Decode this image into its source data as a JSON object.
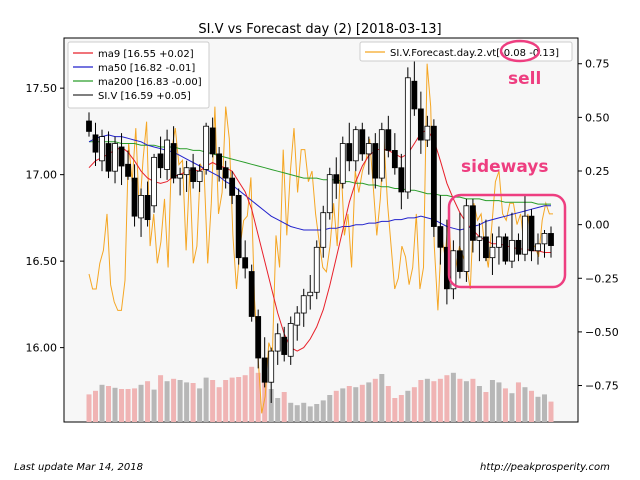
{
  "chart_data": {
    "type": "candlestick",
    "title": "SI.V vs Forecast day (2)  [2018-03-13]",
    "left_axis": {
      "ylim": [
        15.57,
        17.79
      ],
      "ticks": [
        16.0,
        16.5,
        17.0,
        17.5
      ]
    },
    "right_axis": {
      "ylim": [
        -0.92,
        0.87
      ],
      "ticks": [
        -0.75,
        -0.5,
        -0.25,
        0.0,
        0.25,
        0.5,
        0.75
      ]
    },
    "volume_range": [
      0,
      1
    ],
    "legend_left": [
      {
        "label": "ma9 [16.55 +0.02]",
        "color": "#e8202a"
      },
      {
        "label": "ma50 [16.82 -0.01]",
        "color": "#2222cc"
      },
      {
        "label": "ma200 [16.83 -0.00]",
        "color": "#2a9d2a"
      },
      {
        "label": "SI.V [16.59 +0.05]",
        "color": "#333333"
      }
    ],
    "legend_right": [
      {
        "label_prefix": "SI.V.Forecast.day.2.vt",
        "label_value": "[-0.08 -0.13]",
        "color": "#f5a623"
      }
    ],
    "annotations": [
      {
        "text": "sell",
        "color": "#ee3e80"
      },
      {
        "text": "sideways",
        "color": "#ee3e80"
      }
    ],
    "ohlc": [
      [
        17.31,
        17.36,
        17.22,
        17.25
      ],
      [
        17.23,
        17.3,
        17.05,
        17.13
      ],
      [
        17.08,
        17.26,
        17.02,
        17.22
      ],
      [
        17.18,
        17.25,
        16.98,
        17.02
      ],
      [
        17.02,
        17.22,
        16.95,
        17.18
      ],
      [
        17.16,
        17.24,
        16.94,
        17.05
      ],
      [
        17.06,
        17.14,
        16.97,
        16.99
      ],
      [
        16.98,
        17.06,
        16.7,
        16.76
      ],
      [
        16.75,
        16.92,
        16.64,
        16.88
      ],
      [
        16.88,
        16.96,
        16.7,
        16.74
      ],
      [
        16.82,
        17.12,
        16.78,
        17.1
      ],
      [
        17.12,
        17.22,
        16.98,
        17.04
      ],
      [
        17.03,
        17.26,
        16.97,
        17.2
      ],
      [
        17.18,
        17.28,
        16.95,
        16.98
      ],
      [
        16.98,
        17.04,
        16.88,
        17.0
      ],
      [
        17.0,
        17.08,
        16.9,
        17.04
      ],
      [
        17.04,
        17.12,
        16.92,
        16.96
      ],
      [
        16.96,
        17.06,
        16.9,
        17.02
      ],
      [
        17.03,
        17.3,
        17.0,
        17.28
      ],
      [
        17.27,
        17.33,
        17.1,
        17.12
      ],
      [
        17.12,
        17.16,
        16.96,
        17.03
      ],
      [
        17.04,
        17.08,
        16.92,
        16.98
      ],
      [
        16.98,
        17.02,
        16.83,
        16.88
      ],
      [
        16.88,
        16.92,
        16.48,
        16.52
      ],
      [
        16.52,
        16.62,
        16.4,
        16.46
      ],
      [
        16.44,
        16.48,
        16.15,
        16.18
      ],
      [
        16.18,
        16.22,
        15.88,
        15.94
      ],
      [
        15.94,
        16.06,
        15.77,
        15.8
      ],
      [
        15.8,
        16.0,
        15.68,
        15.98
      ],
      [
        15.98,
        16.14,
        15.9,
        16.08
      ],
      [
        16.06,
        16.12,
        15.92,
        15.96
      ],
      [
        15.95,
        16.18,
        15.9,
        16.14
      ],
      [
        16.13,
        16.24,
        16.04,
        16.2
      ],
      [
        16.2,
        16.34,
        16.12,
        16.3
      ],
      [
        16.3,
        16.42,
        16.22,
        16.32
      ],
      [
        16.32,
        16.62,
        16.28,
        16.58
      ],
      [
        16.58,
        16.82,
        16.52,
        16.78
      ],
      [
        16.78,
        17.04,
        16.74,
        17.0
      ],
      [
        17.0,
        17.1,
        16.86,
        16.95
      ],
      [
        16.95,
        17.22,
        16.92,
        17.18
      ],
      [
        17.18,
        17.3,
        17.02,
        17.08
      ],
      [
        17.08,
        17.28,
        17.02,
        17.26
      ],
      [
        17.26,
        17.3,
        17.08,
        17.12
      ],
      [
        17.12,
        17.22,
        17.0,
        17.18
      ],
      [
        17.18,
        17.24,
        16.92,
        16.98
      ],
      [
        16.98,
        17.3,
        16.96,
        17.26
      ],
      [
        17.26,
        17.34,
        17.1,
        17.14
      ],
      [
        17.14,
        17.24,
        17.0,
        17.04
      ],
      [
        17.04,
        17.12,
        16.8,
        16.9
      ],
      [
        16.9,
        17.62,
        16.86,
        17.56
      ],
      [
        17.54,
        17.66,
        17.34,
        17.38
      ],
      [
        17.38,
        17.48,
        17.12,
        17.2
      ],
      [
        17.2,
        17.34,
        17.16,
        17.28
      ],
      [
        17.28,
        17.32,
        16.64,
        16.7
      ],
      [
        16.7,
        16.88,
        16.48,
        16.58
      ],
      [
        16.58,
        16.74,
        16.25,
        16.34
      ],
      [
        16.34,
        16.62,
        16.28,
        16.56
      ],
      [
        16.56,
        16.78,
        16.4,
        16.44
      ],
      [
        16.44,
        16.86,
        16.38,
        16.82
      ],
      [
        16.82,
        16.86,
        16.55,
        16.62
      ],
      [
        16.62,
        16.72,
        16.5,
        16.64
      ],
      [
        16.64,
        16.74,
        16.5,
        16.52
      ],
      [
        16.52,
        16.66,
        16.42,
        16.58
      ],
      [
        16.58,
        16.7,
        16.48,
        16.64
      ],
      [
        16.64,
        16.66,
        16.48,
        16.5
      ],
      [
        16.5,
        16.78,
        16.46,
        16.62
      ],
      [
        16.62,
        16.66,
        16.5,
        16.54
      ],
      [
        16.54,
        16.88,
        16.5,
        16.76
      ],
      [
        16.76,
        16.8,
        16.5,
        16.56
      ],
      [
        16.56,
        16.66,
        16.48,
        16.6
      ],
      [
        16.6,
        16.68,
        16.52,
        16.66
      ],
      [
        16.66,
        16.7,
        16.52,
        16.59
      ]
    ],
    "ma9": [
      17.04,
      17.08,
      17.1,
      17.12,
      17.14,
      17.16,
      17.13,
      17.08,
      17.02,
      16.98,
      16.96,
      16.95,
      16.96,
      16.99,
      17.0,
      17.02,
      17.03,
      17.02,
      17.05,
      17.07,
      17.05,
      17.04,
      17.02,
      16.96,
      16.9,
      16.8,
      16.65,
      16.5,
      16.35,
      16.2,
      16.08,
      16.0,
      15.98,
      16.0,
      16.05,
      16.12,
      16.22,
      16.36,
      16.52,
      16.68,
      16.84,
      16.96,
      17.05,
      17.11,
      17.14,
      17.15,
      17.14,
      17.12,
      17.1,
      17.12,
      17.18,
      17.24,
      17.26,
      17.2,
      17.08,
      16.95,
      16.86,
      16.78,
      16.72,
      16.68,
      16.64,
      16.62,
      16.6,
      16.6,
      16.59,
      16.58,
      16.57,
      16.57,
      16.56,
      16.56,
      16.55,
      16.55
    ],
    "ma50": [
      17.19,
      17.21,
      17.22,
      17.23,
      17.22,
      17.22,
      17.21,
      17.2,
      17.19,
      17.17,
      17.16,
      17.15,
      17.14,
      17.13,
      17.11,
      17.09,
      17.07,
      17.05,
      17.03,
      17.01,
      16.99,
      16.96,
      16.94,
      16.91,
      16.88,
      16.85,
      16.82,
      16.79,
      16.76,
      16.74,
      16.72,
      16.7,
      16.69,
      16.68,
      16.68,
      16.68,
      16.68,
      16.69,
      16.69,
      16.7,
      16.7,
      16.71,
      16.71,
      16.72,
      16.72,
      16.73,
      16.73,
      16.74,
      16.74,
      16.75,
      16.75,
      16.76,
      16.75,
      16.74,
      16.72,
      16.7,
      16.69,
      16.68,
      16.69,
      16.7,
      16.71,
      16.73,
      16.74,
      16.75,
      16.76,
      16.77,
      16.78,
      16.79,
      16.8,
      16.81,
      16.82,
      16.82
    ],
    "ma200": [
      17.19,
      17.19,
      17.19,
      17.19,
      17.19,
      17.18,
      17.18,
      17.18,
      17.17,
      17.17,
      17.17,
      17.16,
      17.16,
      17.16,
      17.15,
      17.15,
      17.14,
      17.14,
      17.13,
      17.12,
      17.11,
      17.1,
      17.09,
      17.08,
      17.07,
      17.06,
      17.05,
      17.04,
      17.03,
      17.02,
      17.01,
      17.0,
      16.99,
      16.98,
      16.98,
      16.98,
      16.97,
      16.97,
      16.97,
      16.96,
      16.96,
      16.95,
      16.95,
      16.94,
      16.94,
      16.93,
      16.93,
      16.92,
      16.92,
      16.91,
      16.91,
      16.9,
      16.89,
      16.89,
      16.88,
      16.88,
      16.87,
      16.87,
      16.86,
      16.86,
      16.86,
      16.85,
      16.85,
      16.85,
      16.84,
      16.84,
      16.84,
      16.84,
      16.84,
      16.83,
      16.83,
      16.83
    ],
    "forecast": [
      -0.23,
      -0.3,
      -0.3,
      -0.18,
      -0.12,
      0.05,
      -0.28,
      -0.36,
      -0.4,
      -0.4,
      -0.26,
      0.38,
      0.2,
      0.45,
      0.05,
      0.3,
      0.48,
      -0.1,
      0.05,
      -0.18,
      -0.08,
      0.12,
      -0.2,
      0.35,
      0.45,
      0.28,
      0.3,
      -0.12,
      0.25,
      -0.18,
      -0.1,
      0.28,
      0.25,
      -0.18,
      0.1,
      0.55,
      0.05,
      0.15,
      0.55,
      0.4,
      -0.05,
      -0.3,
      -0.1,
      0.02,
      0.04,
      0.22,
      -0.35,
      -0.62,
      -0.88,
      -0.8,
      -0.55,
      -0.6,
      -0.05,
      -0.2,
      0.35,
      -0.05,
      0.25,
      0.45,
      0.15,
      0.35,
      0.35,
      0.2,
      0.25,
      0.05,
      -0.08,
      -0.2,
      -0.22,
      -0.1,
      0.1,
      -0.1,
      0.3,
      -0.05,
      0.05,
      -0.2,
      0.25,
      0.15,
      0.25,
      0.3,
      0.4,
      0.18,
      -0.05,
      0.12,
      0.4,
      0.1,
      -0.1,
      -0.3,
      -0.25,
      -0.1,
      -0.15,
      -0.28,
      -0.2,
      0.05,
      -0.3,
      -0.2,
      0.75,
      0.55,
      -0.1,
      -0.4,
      -0.05,
      -0.15,
      0.05,
      -0.25,
      -0.2,
      -0.1,
      -0.15,
      -0.2,
      -0.3,
      0.1,
      0.02,
      0.05,
      -0.1,
      -0.2,
      0.0,
      0.2,
      0.25,
      0.05,
      0.02,
      0.1,
      0.1,
      0.0,
      0.05,
      -0.1,
      0.05,
      -0.1,
      -0.1,
      -0.15,
      0.02,
      0.1,
      0.05,
      0.05
    ],
    "volume": [
      0.46,
      0.52,
      0.62,
      0.6,
      0.57,
      0.55,
      0.55,
      0.56,
      0.62,
      0.68,
      0.54,
      0.78,
      0.68,
      0.72,
      0.7,
      0.66,
      0.65,
      0.56,
      0.74,
      0.7,
      0.58,
      0.7,
      0.74,
      0.75,
      0.78,
      0.92,
      0.82,
      0.74,
      0.55,
      0.4,
      0.5,
      0.32,
      0.28,
      0.32,
      0.26,
      0.3,
      0.36,
      0.45,
      0.52,
      0.56,
      0.6,
      0.58,
      0.62,
      0.66,
      0.72,
      0.8,
      0.6,
      0.4,
      0.45,
      0.52,
      0.58,
      0.7,
      0.72,
      0.68,
      0.72,
      0.78,
      0.82,
      0.72,
      0.68,
      0.72,
      0.6,
      0.5,
      0.7,
      0.66,
      0.56,
      0.48,
      0.66,
      0.58,
      0.52,
      0.42,
      0.46,
      0.34
    ]
  },
  "footer": {
    "left": "Last update Mar 14, 2018",
    "right": "http://peakprosperity.com"
  }
}
